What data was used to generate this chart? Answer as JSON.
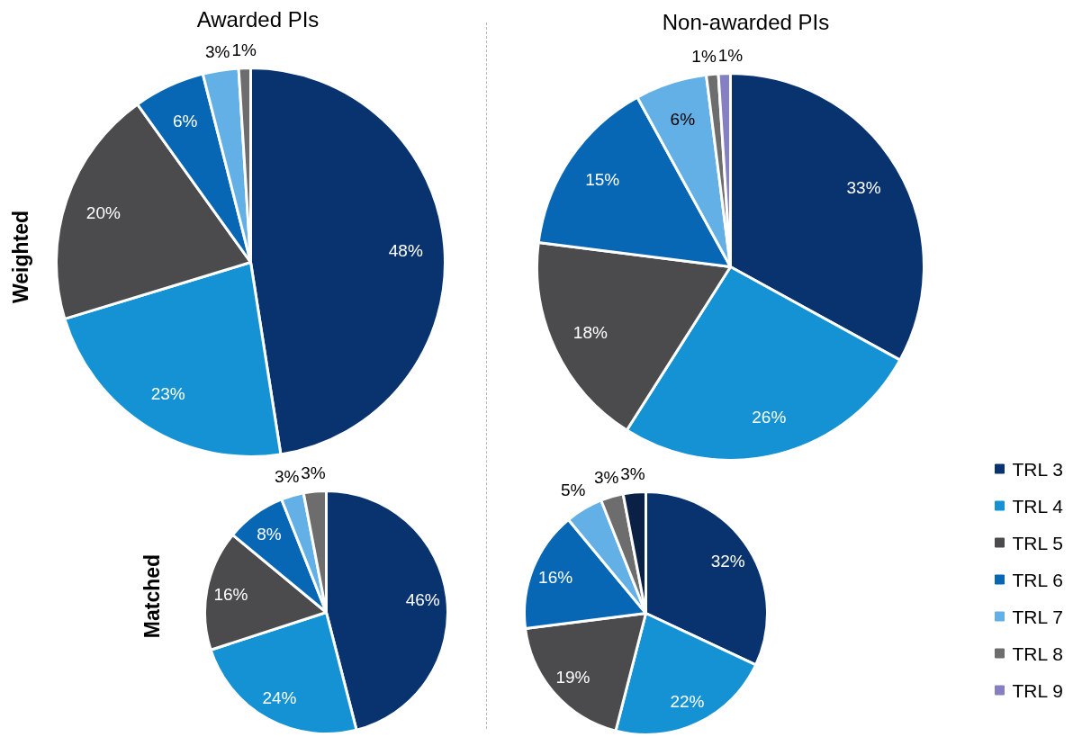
{
  "chart_data": [
    {
      "type": "pie",
      "title": "Awarded PIs",
      "ylabel": "Weighted",
      "values": [
        48,
        23,
        20,
        6,
        3,
        1
      ],
      "colors": [
        "#08336e",
        "#1592d4",
        "#4b4b4d",
        "#0767b4",
        "#62b0e6",
        "#6d6d6d"
      ],
      "value_labels": [
        "48%",
        "23%",
        "20%",
        "6%",
        "3%",
        "1%"
      ]
    },
    {
      "type": "pie",
      "title": "Non-awarded PIs",
      "categories": [
        "TRL 3",
        "TRL 4",
        "TRL 5",
        "TRL 6",
        "TRL 7",
        "TRL 8",
        "TRL 9"
      ],
      "values": [
        33,
        26,
        18,
        15,
        6,
        1,
        1
      ],
      "colors": [
        "#08336e",
        "#1592d4",
        "#4b4b4d",
        "#0767b4",
        "#62b0e6",
        "#6d6d6d",
        "#8480c2"
      ],
      "value_labels": [
        "33%",
        "26%",
        "18%",
        "15%",
        "6%",
        "1%",
        "1%"
      ],
      "legend": "bottom right"
    },
    {
      "type": "pie",
      "ylabel": "Matched",
      "values": [
        46,
        24,
        16,
        8,
        3,
        3
      ],
      "colors": [
        "#08336e",
        "#1592d4",
        "#4b4b4d",
        "#0767b4",
        "#62b0e6",
        "#6d6d6d"
      ],
      "value_labels": [
        "46%",
        "24%",
        "16%",
        "8%",
        "3%",
        "3%"
      ]
    },
    {
      "type": "pie",
      "values": [
        32,
        22,
        19,
        16,
        5,
        3,
        3
      ],
      "colors": [
        "#08336e",
        "#1592d4",
        "#4b4b4d",
        "#0767b4",
        "#62b0e6",
        "#6d6d6d",
        "#0b2045"
      ],
      "value_labels": [
        "32%",
        "22%",
        "19%",
        "16%",
        "5%",
        "3%",
        "3%"
      ]
    }
  ]
}
